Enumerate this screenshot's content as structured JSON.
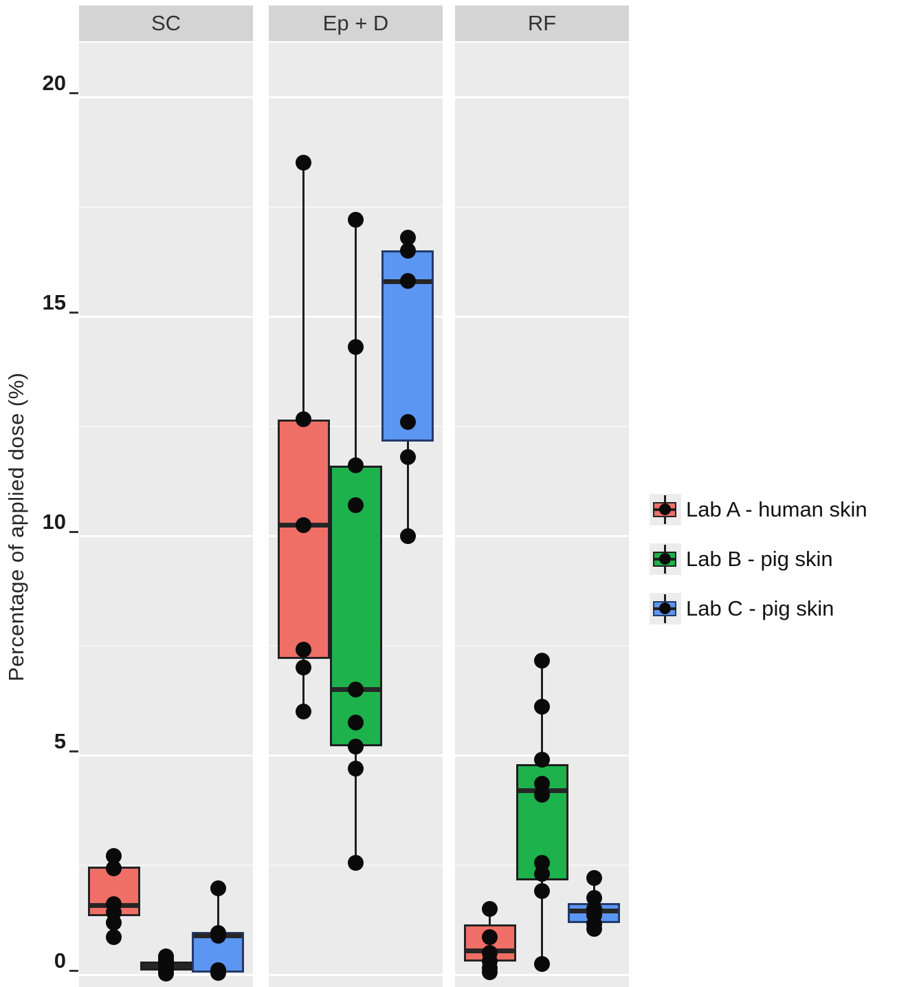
{
  "chart_data": {
    "type": "boxplot",
    "title": "",
    "ylabel": "Percentage of applied dose (%)",
    "xlabel": "",
    "ylim": [
      0,
      20
    ],
    "yticks": [
      0,
      5,
      10,
      15,
      20
    ],
    "minor_ticks": [
      2.5,
      7.5,
      12.5,
      17.5
    ],
    "grid": "on",
    "legend_position": "right",
    "facets": [
      "SC",
      "Ep + D",
      "RF"
    ],
    "series": [
      {
        "name": "Lab A - human skin",
        "color": "#EF6F66",
        "stroke": "#242424",
        "boxes": [
          {
            "facet": "SC",
            "q1": 1.33,
            "median": 1.58,
            "q3": 2.46,
            "whisker_low": 0.86,
            "whisker_high": 2.7,
            "points": [
              2.7,
              2.42,
              1.6,
              1.42,
              1.18,
              0.86
            ]
          },
          {
            "facet": "Ep + D",
            "q1": 7.2,
            "median": 10.25,
            "q3": 12.65,
            "whisker_low": 6.0,
            "whisker_high": 18.5,
            "points": [
              18.5,
              12.65,
              10.25,
              7.4,
              7.0,
              6.0
            ]
          },
          {
            "facet": "RF",
            "q1": 0.3,
            "median": 0.55,
            "q3": 1.15,
            "whisker_low": 0.05,
            "whisker_high": 1.5,
            "points": [
              1.5,
              0.85,
              0.5,
              0.3,
              0.15,
              0.05
            ]
          }
        ]
      },
      {
        "name": "Lab B - pig skin",
        "color": "#1DB24B",
        "stroke": "#1f1f1f",
        "boxes": [
          {
            "facet": "SC",
            "q1": 0.1,
            "median": 0.2,
            "q3": 0.3,
            "whisker_low": 0.02,
            "whisker_high": 0.42,
            "points": [
              0.42,
              0.35,
              0.3,
              0.26,
              0.22,
              0.18,
              0.14,
              0.08,
              0.02
            ]
          },
          {
            "facet": "Ep + D",
            "q1": 5.2,
            "median": 6.5,
            "q3": 11.6,
            "whisker_low": 2.55,
            "whisker_high": 17.2,
            "points": [
              17.2,
              14.3,
              11.6,
              10.7,
              6.5,
              5.75,
              5.2,
              4.7,
              2.55
            ]
          },
          {
            "facet": "RF",
            "q1": 2.15,
            "median": 4.2,
            "q3": 4.8,
            "whisker_low": 0.25,
            "whisker_high": 7.15,
            "points": [
              7.15,
              6.1,
              4.9,
              4.35,
              4.1,
              2.55,
              2.3,
              1.9,
              0.25
            ]
          }
        ]
      },
      {
        "name": "Lab C - pig skin",
        "color": "#5B96F2",
        "stroke": "#223a68",
        "boxes": [
          {
            "facet": "SC",
            "q1": 0.05,
            "median": 0.9,
            "q3": 0.97,
            "whisker_low": 0.02,
            "whisker_high": 1.96,
            "points": [
              1.96,
              0.95,
              0.88,
              0.1,
              0.04
            ]
          },
          {
            "facet": "Ep + D",
            "q1": 12.15,
            "median": 15.8,
            "q3": 16.5,
            "whisker_low": 10.0,
            "whisker_high": 16.8,
            "points": [
              16.8,
              16.5,
              15.8,
              12.6,
              11.8,
              10.0
            ]
          },
          {
            "facet": "RF",
            "q1": 1.18,
            "median": 1.45,
            "q3": 1.63,
            "whisker_low": 1.05,
            "whisker_high": 2.2,
            "points": [
              2.2,
              1.75,
              1.5,
              1.35,
              1.15,
              1.05
            ]
          }
        ]
      }
    ]
  },
  "colors": {
    "strip_bg": "#d4d4d4",
    "panel_bg": "#ebebeb",
    "grid": "#ffffff",
    "point": "#0a0a0a",
    "axis_text": "#1a1a1a"
  }
}
